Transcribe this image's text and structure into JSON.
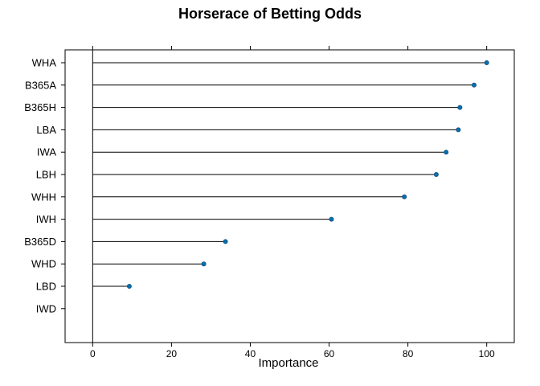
{
  "chart_data": {
    "type": "dotplot",
    "title": "Horserace of Betting Odds",
    "xlabel": "Importance",
    "ylabel": "",
    "xlim": [
      -7,
      107
    ],
    "xticks": [
      0,
      20,
      40,
      60,
      80,
      100
    ],
    "xtick_labels": [
      "0",
      "20",
      "40",
      "60",
      "80",
      "100"
    ],
    "categories": [
      "WHA",
      "B365A",
      "B365H",
      "LBA",
      "IWA",
      "LBH",
      "WHH",
      "IWH",
      "B365D",
      "WHD",
      "LBD",
      "IWD"
    ],
    "values": [
      100,
      96.8,
      93.2,
      92.8,
      89.7,
      87.2,
      79.1,
      60.6,
      33.7,
      28.2,
      9.3,
      0
    ],
    "grid": false,
    "marker_color": "#0072B2"
  }
}
